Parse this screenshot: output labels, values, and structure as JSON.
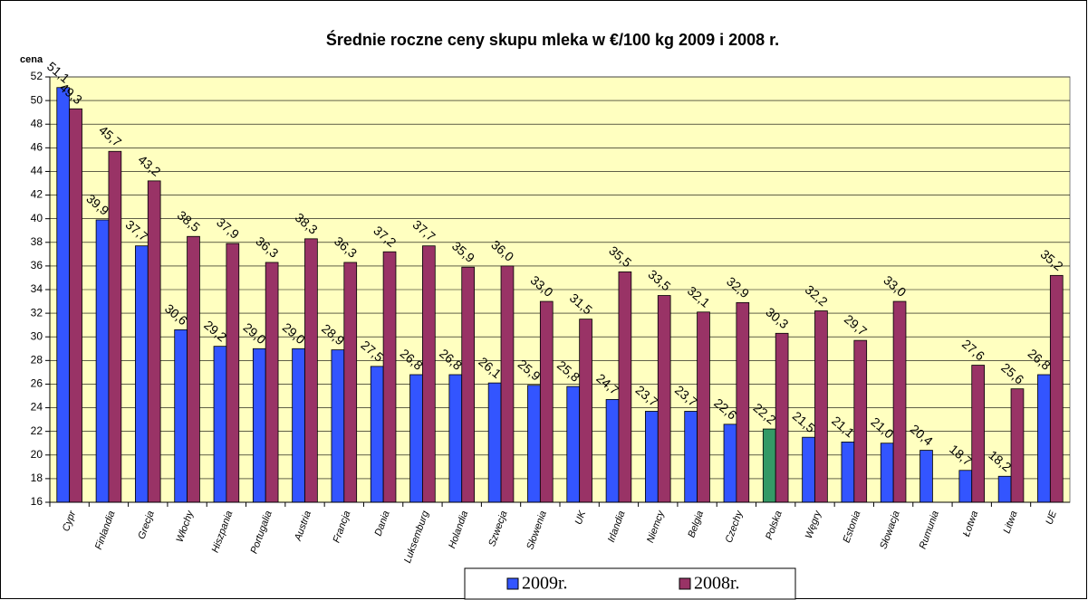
{
  "chart_data": {
    "type": "bar",
    "title": "Średnie roczne ceny skupu mleka w €/100 kg  2009 i 2008 r.",
    "ylabel": "cena",
    "categories": [
      "Cypr",
      "Finlandia",
      "Grecja",
      "Włochy",
      "Hiszpania",
      "Portugalia",
      "Austria",
      "Francja",
      "Dania",
      "Luksemburg",
      "Holandia",
      "Szwecja",
      "Słowenia",
      "UK",
      "Irlandia",
      "Niemcy",
      "Belgia",
      "Czechy",
      "Polska",
      "Węgry",
      "Estonia",
      "Słowacja",
      "Rumunia",
      "Łotwa",
      "Litwa",
      "UE"
    ],
    "series": [
      {
        "name": "2009r.",
        "color": "#3355ff",
        "colors": [
          "#3355ff",
          "#3355ff",
          "#3355ff",
          "#3355ff",
          "#3355ff",
          "#3355ff",
          "#3355ff",
          "#3355ff",
          "#3355ff",
          "#3355ff",
          "#3355ff",
          "#3355ff",
          "#3355ff",
          "#3355ff",
          "#3355ff",
          "#3355ff",
          "#3355ff",
          "#3355ff",
          "#339966",
          "#3355ff",
          "#3355ff",
          "#3355ff",
          "#3355ff",
          "#3355ff",
          "#3355ff",
          "#3355ff"
        ],
        "values": [
          51.1,
          39.9,
          37.7,
          30.6,
          29.2,
          29.0,
          29.0,
          28.9,
          27.5,
          26.8,
          26.8,
          26.1,
          25.9,
          25.8,
          24.7,
          23.7,
          23.7,
          22.6,
          22.2,
          21.5,
          21.1,
          21.0,
          20.4,
          18.7,
          18.2,
          26.8
        ],
        "value_labels": [
          "51,1",
          "39,9",
          "37,7",
          "30,6",
          "29,2",
          "29,0",
          "29,0",
          "28,9",
          "27,5",
          "26,8",
          "26,8",
          "26,1",
          "25,9",
          "25,8",
          "24,7",
          "23,7",
          "23,7",
          "22,6",
          "22,2",
          "21,5",
          "21,1",
          "21,0",
          "20,4",
          "18,7",
          "18,2",
          "26,8"
        ]
      },
      {
        "name": "2008r.",
        "color": "#993366",
        "values": [
          49.3,
          45.7,
          43.2,
          38.5,
          37.9,
          36.3,
          38.3,
          36.3,
          37.2,
          37.7,
          35.9,
          36.0,
          33.0,
          31.5,
          35.5,
          33.5,
          32.1,
          32.9,
          30.3,
          32.2,
          29.7,
          33.0,
          null,
          27.6,
          25.6,
          35.2
        ],
        "value_labels": [
          "49,3",
          "45,7",
          "43,2",
          "38,5",
          "37,9",
          "36,3",
          "38,3",
          "36,3",
          "37,2",
          "37,7",
          "35,9",
          "36,0",
          "33,0",
          "31,5",
          "35,5",
          "33,5",
          "32,1",
          "32,9",
          "30,3",
          "32,2",
          "29,7",
          "33,0",
          null,
          "27,6",
          "25,6",
          "35,2"
        ]
      }
    ],
    "ylim": [
      16,
      52
    ],
    "yticks": [
      16,
      18,
      20,
      22,
      24,
      26,
      28,
      30,
      32,
      34,
      36,
      38,
      40,
      42,
      44,
      46,
      48,
      50,
      52
    ],
    "grid": true,
    "legend": "bottom"
  }
}
